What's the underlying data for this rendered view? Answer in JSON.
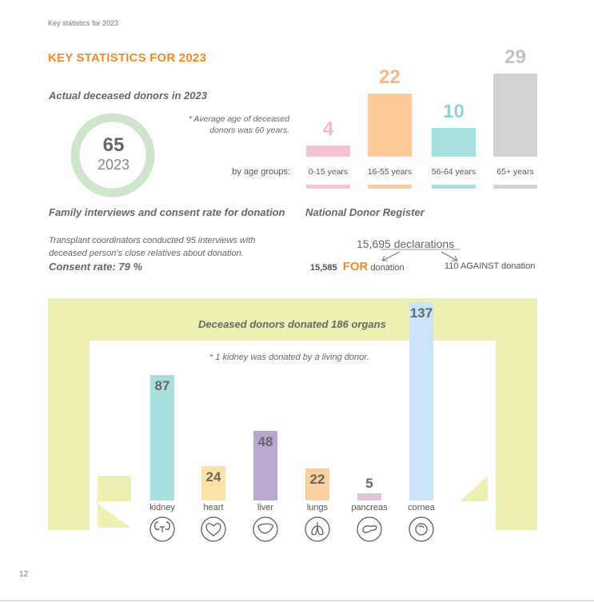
{
  "header": {
    "running_title": "Key statistics for 2023",
    "title": "KEY STATISTICS FOR 2023"
  },
  "donors": {
    "heading": "Actual deceased donors in 2023",
    "count": "65",
    "year": "2023",
    "age_note": "* Average age of deceased donors was 60 years.",
    "by_age_label": "by age groups:"
  },
  "colors": {
    "accent": "#f08a2b",
    "ring": "#cfe6cc",
    "band": "#eef0b3",
    "outer_bar": "#c9e4f7"
  },
  "chart_data": [
    {
      "type": "bar",
      "title": "Actual deceased donors in 2023 by age groups",
      "categories": [
        "0-15 years",
        "16-55 years",
        "56-64 years",
        "65+ years"
      ],
      "values": [
        4,
        22,
        10,
        29
      ],
      "colors": [
        "#f5c3d2",
        "#fccb9a",
        "#a7dfe0",
        "#d2d2d4"
      ],
      "label_colors": [
        "#f2b6c7",
        "#f9b77a",
        "#8fd3d6",
        "#c2c2c4"
      ],
      "ylim": [
        0,
        29
      ]
    },
    {
      "type": "bar",
      "title": "Deceased donors donated 186 organs",
      "categories": [
        "kidney",
        "heart",
        "liver",
        "lungs",
        "pancreas",
        "cornea"
      ],
      "values": [
        87,
        24,
        48,
        22,
        5,
        137
      ],
      "colors": [
        "#a7dfdf",
        "#fbe3a8",
        "#b9a7d2",
        "#fdcfa0",
        "#e3c3da",
        "#c9e4f7"
      ],
      "icons": [
        "kidney-icon",
        "heart-icon",
        "liver-icon",
        "lungs-icon",
        "pancreas-icon",
        "cornea-icon"
      ],
      "ylim": [
        0,
        137
      ]
    }
  ],
  "interviews": {
    "heading": "Family interviews and consent rate for donation",
    "text_line1": "Transplant coordinators conducted 95 interviews with",
    "text_line2": "deceased person’s close relatives about donation.",
    "consent": "Consent rate: 79 %"
  },
  "register": {
    "heading": "National Donor Register",
    "declarations": "15,695 declarations",
    "for_count": "15,585",
    "for_word": "FOR",
    "for_suffix": "donation",
    "against": "110 AGAINST donation"
  },
  "organs": {
    "heading": "Deceased donors donated 186 organs",
    "note": "* 1 kidney was donated by a living donor."
  },
  "footer": {
    "page_number": "12"
  }
}
